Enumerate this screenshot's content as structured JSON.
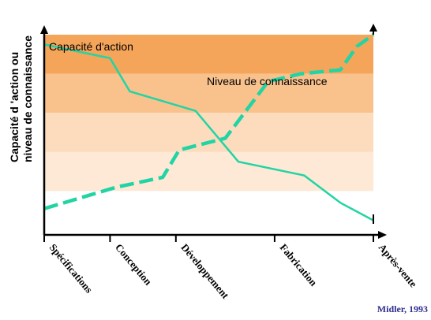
{
  "chart_data": {
    "type": "line",
    "ylabel_line1": "Capacité d 'action ou",
    "ylabel_line2": "niveau de connaissance",
    "credit": "Midler, 1993",
    "categories": [
      "Spécifications",
      "Conception",
      "Développement",
      "Fabrication",
      "Après-vente"
    ],
    "category_x": [
      0,
      1,
      2,
      3.5,
      5
    ],
    "xlim": [
      0,
      5
    ],
    "ylim": [
      0,
      100
    ],
    "bands": [
      {
        "from": 80,
        "to": 100,
        "color": "#f5a55a"
      },
      {
        "from": 60,
        "to": 80,
        "color": "#f9c28d"
      },
      {
        "from": 40,
        "to": 60,
        "color": "#fcdcbd"
      },
      {
        "from": 20,
        "to": 40,
        "color": "#fde9d6"
      },
      {
        "from": 0,
        "to": 20,
        "color": "#ffffff"
      }
    ],
    "series": [
      {
        "name": "Capacité d'action",
        "color": "#22d4a4",
        "dash": false,
        "x": [
          0,
          1,
          1.3,
          2.3,
          2.95,
          3.95,
          4.5,
          5
        ],
        "y": [
          95,
          88,
          71,
          61,
          35,
          28,
          14,
          5
        ]
      },
      {
        "name": "Niveau de connaissance",
        "color": "#22d4a4",
        "dash": true,
        "x": [
          0,
          0.4,
          1.1,
          1.8,
          2.05,
          2.75,
          3.4,
          3.9,
          4.5,
          4.75,
          5
        ],
        "y": [
          11,
          15,
          22,
          27,
          41,
          47,
          76,
          80,
          82,
          94,
          100
        ]
      }
    ]
  }
}
